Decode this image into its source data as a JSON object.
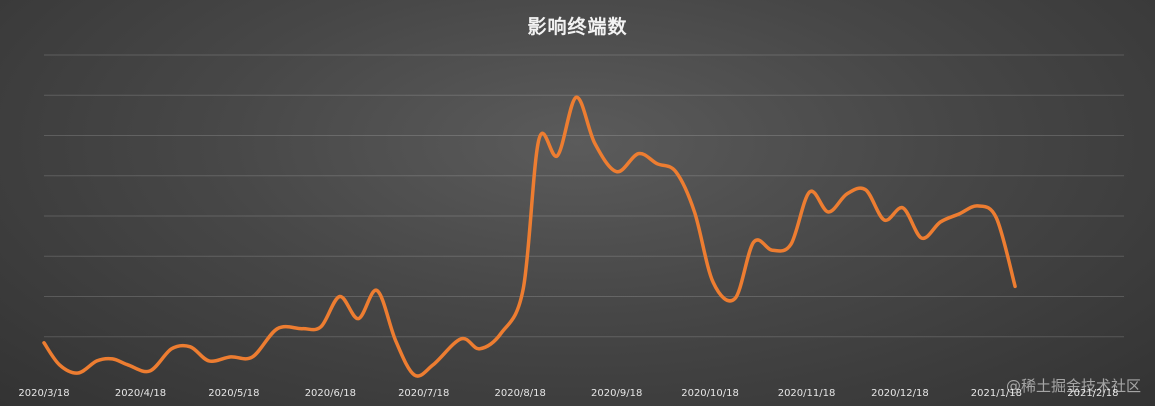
{
  "chart_data": {
    "type": "line",
    "title": "影响终端数",
    "xlabel": "",
    "ylabel": "",
    "x_start": "2020/3/18",
    "x_end": "2021/2/28",
    "x_tick_labels": [
      "2020/3/18",
      "2020/4/18",
      "2020/5/18",
      "2020/6/18",
      "2020/7/18",
      "2020/8/18",
      "2020/9/18",
      "2020/10/18",
      "2020/11/18",
      "2020/12/18",
      "2021/1/18",
      "2021/2/18"
    ],
    "ylim": [
      0,
      8
    ],
    "grid": true,
    "legend": "none",
    "series": [
      {
        "color": "#ed7d31",
        "points": [
          [
            "2020/3/18",
            0.85
          ],
          [
            "2020/3/23",
            0.3
          ],
          [
            "2020/3/29",
            0.1
          ],
          [
            "2020/4/4",
            0.4
          ],
          [
            "2020/4/9",
            0.45
          ],
          [
            "2020/4/14",
            0.3
          ],
          [
            "2020/4/21",
            0.15
          ],
          [
            "2020/4/28",
            0.7
          ],
          [
            "2020/5/4",
            0.75
          ],
          [
            "2020/5/10",
            0.4
          ],
          [
            "2020/5/17",
            0.5
          ],
          [
            "2020/5/24",
            0.5
          ],
          [
            "2020/6/1",
            1.2
          ],
          [
            "2020/6/9",
            1.2
          ],
          [
            "2020/6/15",
            1.25
          ],
          [
            "2020/6/21",
            2.0
          ],
          [
            "2020/6/27",
            1.45
          ],
          [
            "2020/7/3",
            2.15
          ],
          [
            "2020/7/9",
            0.9
          ],
          [
            "2020/7/15",
            0.05
          ],
          [
            "2020/7/21",
            0.3
          ],
          [
            "2020/7/30",
            0.95
          ],
          [
            "2020/8/5",
            0.7
          ],
          [
            "2020/8/12",
            1.1
          ],
          [
            "2020/8/19",
            2.2
          ],
          [
            "2020/8/24",
            5.9
          ],
          [
            "2020/8/30",
            5.5
          ],
          [
            "2020/9/5",
            6.95
          ],
          [
            "2020/9/11",
            5.8
          ],
          [
            "2020/9/18",
            5.1
          ],
          [
            "2020/9/25",
            5.55
          ],
          [
            "2020/10/1",
            5.3
          ],
          [
            "2020/10/7",
            5.1
          ],
          [
            "2020/10/13",
            4.1
          ],
          [
            "2020/10/19",
            2.35
          ],
          [
            "2020/10/26",
            1.95
          ],
          [
            "2020/11/1",
            3.35
          ],
          [
            "2020/11/7",
            3.15
          ],
          [
            "2020/11/13",
            3.3
          ],
          [
            "2020/11/19",
            4.6
          ],
          [
            "2020/11/25",
            4.1
          ],
          [
            "2020/12/1",
            4.55
          ],
          [
            "2020/12/7",
            4.65
          ],
          [
            "2020/12/13",
            3.9
          ],
          [
            "2020/12/19",
            4.2
          ],
          [
            "2020/12/25",
            3.45
          ],
          [
            "2020/12/31",
            3.85
          ],
          [
            "2021/1/6",
            4.05
          ],
          [
            "2021/1/12",
            4.25
          ],
          [
            "2021/1/18",
            3.95
          ],
          [
            "2021/1/24",
            2.25
          ]
        ]
      }
    ]
  },
  "watermark": "@稀土掘金技术社区"
}
